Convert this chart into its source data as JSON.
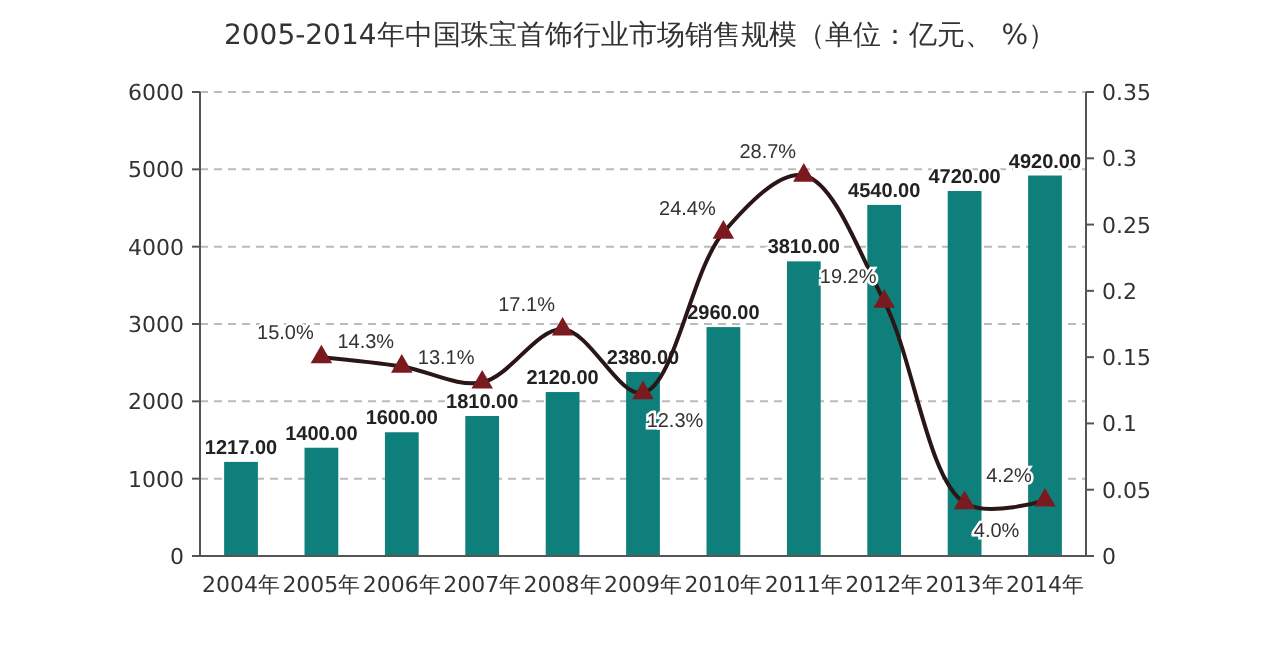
{
  "chart_data": {
    "type": "bar",
    "title": "2005-2014年中国珠宝首饰行业市场销售规模（单位：亿元、 %）",
    "categories": [
      "2004年",
      "2005年",
      "2006年",
      "2007年",
      "2008年",
      "2009年",
      "2010年",
      "2011年",
      "2012年",
      "2013年",
      "2014年"
    ],
    "series": [
      {
        "color": "#0e7f7a",
        "values": [
          1217,
          1400,
          1600,
          1810,
          2120,
          2380,
          2960,
          3810,
          4540,
          4720,
          4920
        ],
        "value_labels": [
          "1217.00",
          "1400.00",
          "1600.00",
          "1810.00",
          "2120.00",
          "2380.00",
          "2960.00",
          "3810.00",
          "4540.00",
          "4720.00",
          "4920.00"
        ]
      },
      {
        "type": "line",
        "axis": "y2",
        "color": "#2a1616",
        "marker": "triangle",
        "values": [
          null,
          0.15,
          0.143,
          0.131,
          0.171,
          0.123,
          0.244,
          0.287,
          0.192,
          0.04,
          0.042
        ],
        "value_labels": [
          null,
          "15.0%",
          "14.3%",
          "13.1%",
          "17.1%",
          "12.3%",
          "24.4%",
          "28.7%",
          "19.2%",
          "4.0%",
          "4.2%"
        ]
      }
    ],
    "ylim": [
      0,
      6000
    ],
    "yticks": [
      0,
      1000,
      2000,
      3000,
      4000,
      5000,
      6000
    ],
    "y2lim": [
      0,
      0.35
    ],
    "y2ticks": [
      0,
      {
        "value": 0.05,
        "label": "0.05"
      },
      {
        "value": 0.1,
        "label": "0.1"
      },
      {
        "value": 0.15,
        "label": "0.15"
      },
      {
        "value": 0.2,
        "label": "0.2"
      },
      {
        "value": 0.25,
        "label": "0.25"
      },
      {
        "value": 0.3,
        "label": "0.3"
      },
      {
        "value": 0.35,
        "label": "0.35"
      }
    ],
    "grid": "y",
    "legend": false
  }
}
